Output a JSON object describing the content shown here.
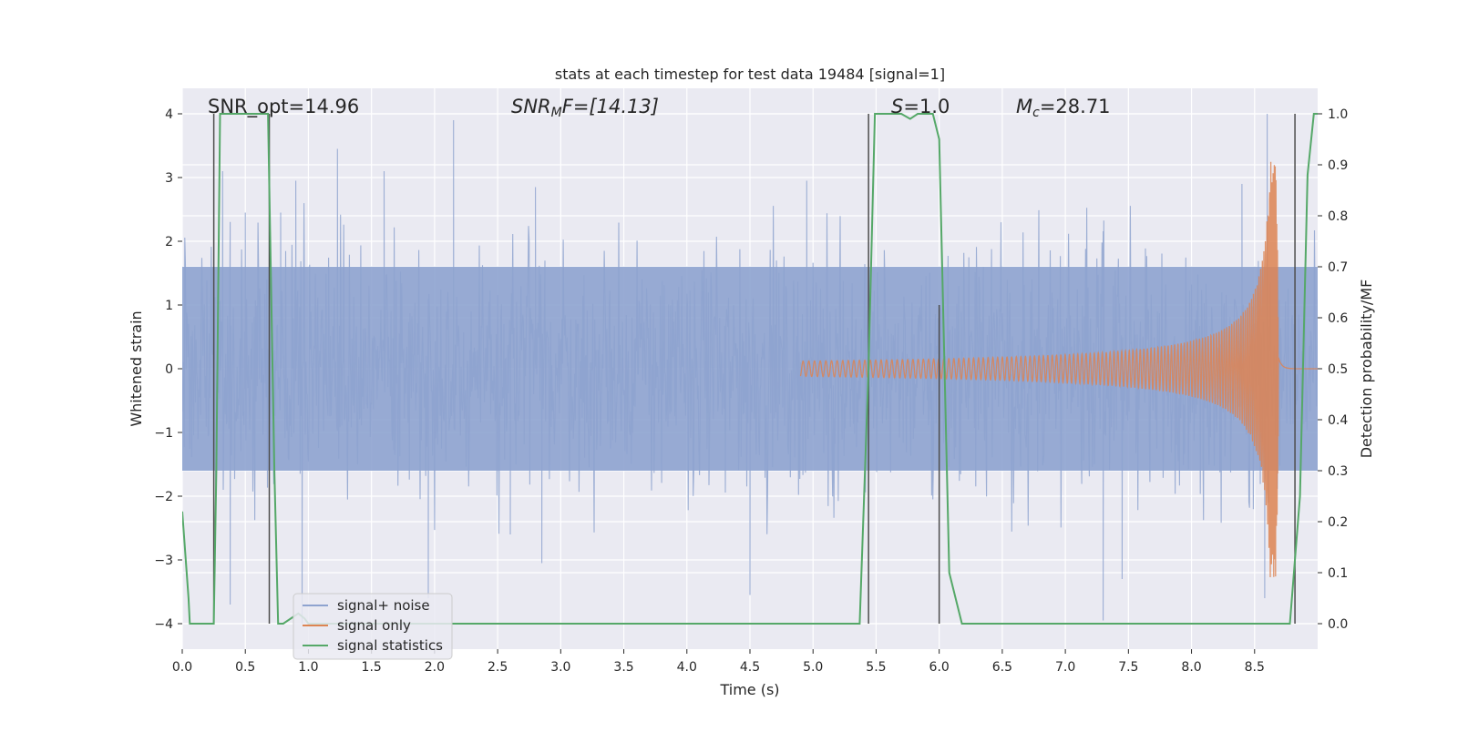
{
  "chart_data": {
    "type": "line",
    "title": "stats at each timestep for test data 19484 [signal=1]",
    "xlabel": "Time (s)",
    "ylabel": "Whitened strain",
    "ylabel_right": "Detection probability/MF",
    "xlim": [
      0,
      9.0
    ],
    "ylim": [
      -4.4,
      4.4
    ],
    "ylim_right": [
      -0.05,
      1.05
    ],
    "x_ticks": [
      0.0,
      0.5,
      1.0,
      1.5,
      2.0,
      2.5,
      3.0,
      3.5,
      4.0,
      4.5,
      5.0,
      5.5,
      6.0,
      6.5,
      7.0,
      7.5,
      8.0,
      8.5
    ],
    "x_tick_labels": [
      "0.0",
      "0.5",
      "1.0",
      "1.5",
      "2.0",
      "2.5",
      "3.0",
      "3.5",
      "4.0",
      "4.5",
      "5.0",
      "5.5",
      "6.0",
      "6.5",
      "7.0",
      "7.5",
      "8.0",
      "8.5"
    ],
    "y_ticks": [
      -4,
      -3,
      -2,
      -1,
      0,
      1,
      2,
      3,
      4
    ],
    "y_tick_labels": [
      "−4",
      "−3",
      "−2",
      "−1",
      "0",
      "1",
      "2",
      "3",
      "4"
    ],
    "y_right_ticks": [
      0.0,
      0.1,
      0.2,
      0.3,
      0.4,
      0.5,
      0.6,
      0.7,
      0.8,
      0.9,
      1.0
    ],
    "y_right_tick_labels": [
      "0.0",
      "0.1",
      "0.2",
      "0.3",
      "0.4",
      "0.5",
      "0.6",
      "0.7",
      "0.8",
      "0.9",
      "1.0"
    ],
    "grid": true,
    "legend_position": "lower-left",
    "annotations": {
      "snr_opt": "SNR_opt=14.96",
      "snr_mf_prefix": "SNR",
      "snr_mf_sub": "M",
      "snr_mf_suffix": "F=[14.13]",
      "s_prefix": "S",
      "s_suffix": "=1.0",
      "mc_prefix": "M",
      "mc_sub": "c",
      "mc_suffix": "=28.71"
    },
    "series": [
      {
        "name": "signal+ noise",
        "color": "#8ea3cf",
        "kind": "noise",
        "axis": "left",
        "baseline_range": [
          -1.6,
          1.6
        ],
        "spike_peaks": [
          {
            "x": 0.32,
            "y": 3.1
          },
          {
            "x": 0.38,
            "y": -3.7
          },
          {
            "x": 0.5,
            "y": 2.45
          },
          {
            "x": 0.78,
            "y": 2.45
          },
          {
            "x": 0.9,
            "y": 2.95
          },
          {
            "x": 0.95,
            "y": -4.0
          },
          {
            "x": 1.23,
            "y": 3.45
          },
          {
            "x": 1.6,
            "y": 3.1
          },
          {
            "x": 1.95,
            "y": -3.6
          },
          {
            "x": 2.15,
            "y": 3.9
          },
          {
            "x": 2.6,
            "y": -2.6
          },
          {
            "x": 2.8,
            "y": 2.85
          },
          {
            "x": 2.85,
            "y": -3.05
          },
          {
            "x": 4.5,
            "y": -3.55
          },
          {
            "x": 4.95,
            "y": 2.95
          },
          {
            "x": 7.3,
            "y": -3.95
          },
          {
            "x": 7.45,
            "y": -3.3
          },
          {
            "x": 8.4,
            "y": 2.9
          },
          {
            "x": 8.6,
            "y": 4.0
          },
          {
            "x": 8.58,
            "y": -3.6
          }
        ]
      },
      {
        "name": "signal only",
        "color": "#dd8452",
        "kind": "chirp",
        "axis": "left",
        "peak_time": 8.67,
        "peak_amplitude": 3.3,
        "start_time": 4.9
      },
      {
        "name": "signal statistics",
        "color": "#55a868",
        "kind": "line",
        "axis": "right",
        "x": [
          0.0,
          0.05,
          0.06,
          0.25,
          0.27,
          0.3,
          0.3,
          0.55,
          0.6,
          0.68,
          0.73,
          0.76,
          0.76,
          0.8,
          0.92,
          0.97,
          1.0,
          1.05,
          5.37,
          5.44,
          5.49,
          5.51,
          5.7,
          5.77,
          5.83,
          5.95,
          6.0,
          6.08,
          6.18,
          8.78,
          8.86,
          8.92,
          8.97,
          9.0
        ],
        "y": [
          0.22,
          0.05,
          0.0,
          0.0,
          0.3,
          1.0,
          1.0,
          1.0,
          1.0,
          1.0,
          0.3,
          0.0,
          0.0,
          0.0,
          0.02,
          0.01,
          0.0,
          0.0,
          0.0,
          0.5,
          1.0,
          1.0,
          1.0,
          0.99,
          1.0,
          1.0,
          0.95,
          0.1,
          0.0,
          0.0,
          0.25,
          0.88,
          1.0,
          1.0
        ]
      }
    ],
    "vertical_markers": [
      {
        "x": 0.25,
        "from": -4.0,
        "to": 4.0
      },
      {
        "x": 0.69,
        "from": -4.0,
        "to": 4.0
      },
      {
        "x": 5.44,
        "from": -4.0,
        "to": 4.0
      },
      {
        "x": 6.0,
        "from": -4.0,
        "to": 1.0
      },
      {
        "x": 8.82,
        "from": -4.0,
        "to": 4.0
      }
    ],
    "colors": {
      "plot_background": "#eaeaf2",
      "grid": "#ffffff",
      "marker": "#4d4d4d"
    }
  }
}
